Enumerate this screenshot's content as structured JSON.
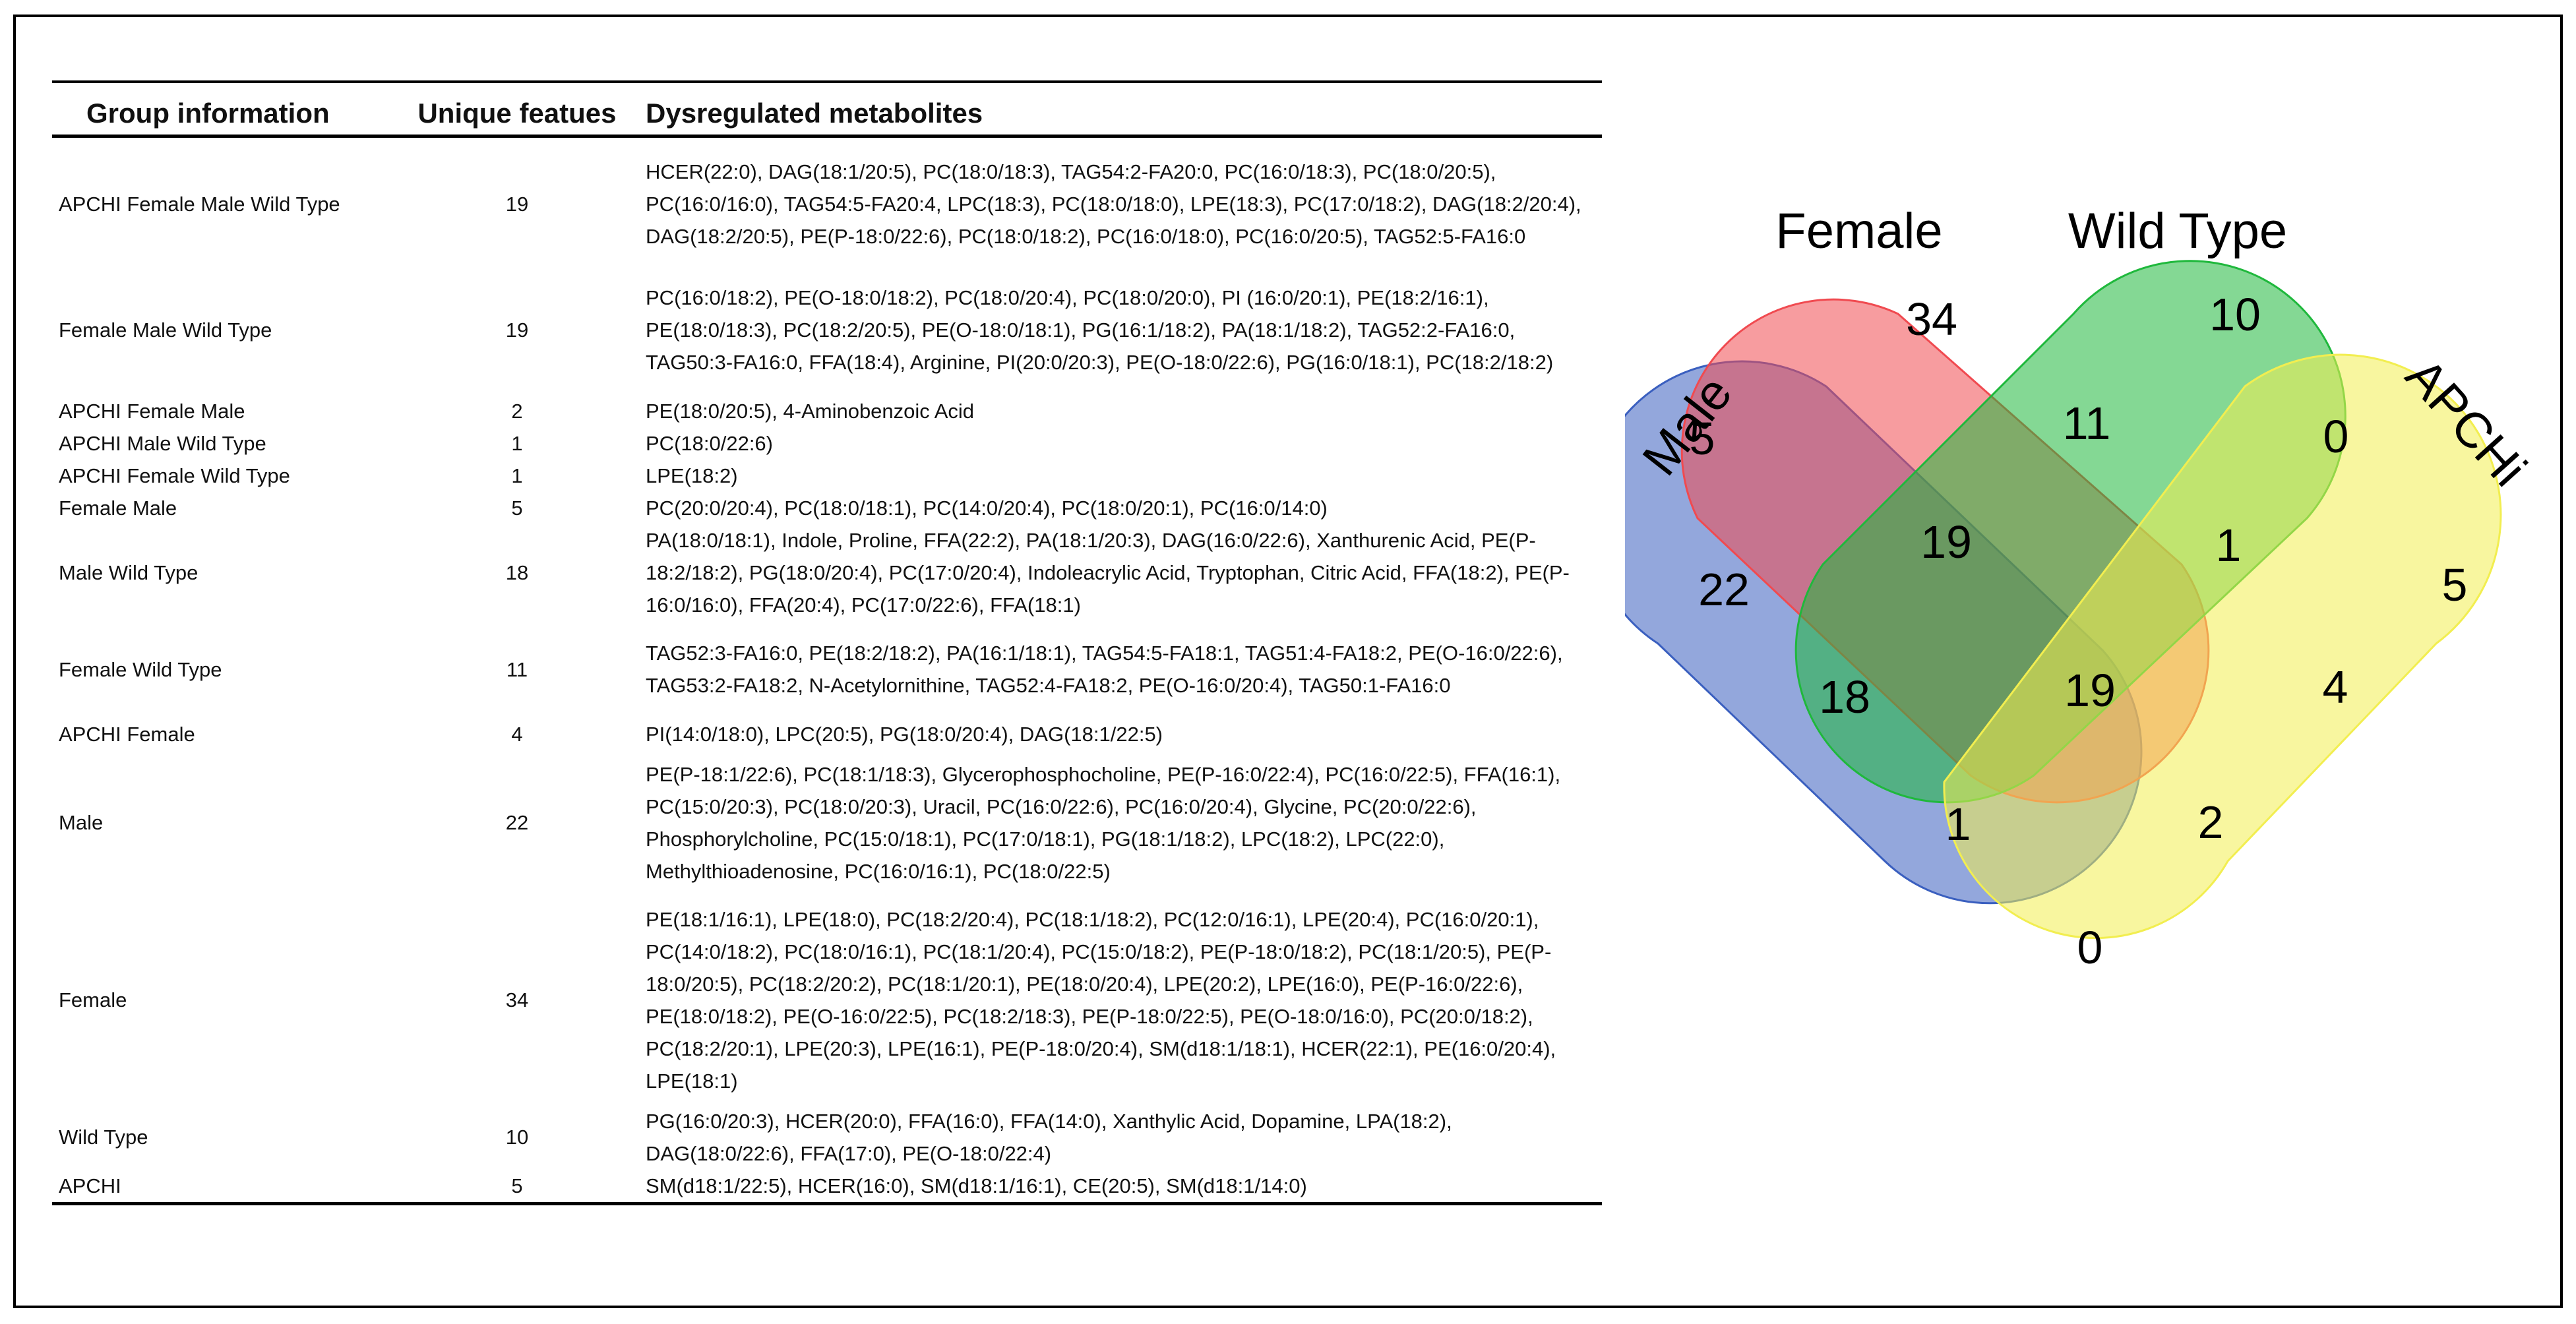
{
  "table": {
    "headers": [
      "Group information",
      "Unique featues",
      "Dysregulated metabolites"
    ],
    "rows": [
      {
        "group": "APCHI Female Male Wild Type",
        "count": "19",
        "metabolites": "HCER(22:0), DAG(18:1/20:5), PC(18:0/18:3), TAG54:2-FA20:0, PC(16:0/18:3), PC(18:0/20:5), PC(16:0/16:0), TAG54:5-FA20:4, LPC(18:3), PC(18:0/18:0), LPE(18:3), PC(17:0/18:2), DAG(18:2/20:4), DAG(18:2/20:5), PE(P-18:0/22:6), PC(18:0/18:2), PC(16:0/18:0), PC(16:0/20:5), TAG52:5-FA16:0"
      },
      {
        "group": "Female Male Wild Type",
        "count": "19",
        "metabolites": "PC(16:0/18:2), PE(O-18:0/18:2), PC(18:0/20:4), PC(18:0/20:0), PI (16:0/20:1), PE(18:2/16:1), PE(18:0/18:3), PC(18:2/20:5), PE(O-18:0/18:1), PG(16:1/18:2), PA(18:1/18:2), TAG52:2-FA16:0, TAG50:3-FA16:0, FFA(18:4), Arginine, PI(20:0/20:3), PE(O-18:0/22:6), PG(16:0/18:1),  PC(18:2/18:2)"
      },
      {
        "group": "APCHI Female Male",
        "count": "2",
        "metabolites": "PE(18:0/20:5), 4-Aminobenzoic Acid"
      },
      {
        "group": "APCHI Male Wild Type",
        "count": "1",
        "metabolites": "PC(18:0/22:6)"
      },
      {
        "group": "APCHI Female Wild Type",
        "count": "1",
        "metabolites": "LPE(18:2)"
      },
      {
        "group": "Female Male",
        "count": "5",
        "metabolites": "PC(20:0/20:4), PC(18:0/18:1), PC(14:0/20:4), PC(18:0/20:1), PC(16:0/14:0)"
      },
      {
        "group": "Male Wild Type",
        "count": "18",
        "metabolites": "PA(18:0/18:1), Indole, Proline, FFA(22:2), PA(18:1/20:3), DAG(16:0/22:6), Xanthurenic Acid, PE(P-18:2/18:2), PG(18:0/20:4), PC(17:0/20:4), Indoleacrylic Acid, Tryptophan, Citric Acid, FFA(18:2), PE(P-16:0/16:0), FFA(20:4), PC(17:0/22:6), FFA(18:1)"
      },
      {
        "group": "Female Wild Type",
        "count": "11",
        "metabolites": "TAG52:3-FA16:0, PE(18:2/18:2), PA(16:1/18:1), TAG54:5-FA18:1, TAG51:4-FA18:2, PE(O-16:0/22:6), TAG53:2-FA18:2, N-Acetylornithine, TAG52:4-FA18:2, PE(O-16:0/20:4), TAG50:1-FA16:0"
      },
      {
        "group": "APCHI Female",
        "count": "4",
        "metabolites": "PI(14:0/18:0), LPC(20:5), PG(18:0/20:4), DAG(18:1/22:5)"
      },
      {
        "group": "Male",
        "count": "22",
        "metabolites": "PE(P-18:1/22:6), PC(18:1/18:3), Glycerophosphocholine, PE(P-16:0/22:4), PC(16:0/22:5), FFA(16:1), PC(15:0/20:3), PC(18:0/20:3), Uracil, PC(16:0/22:6), PC(16:0/20:4), Glycine, PC(20:0/22:6), Phosphorylcholine, PC(15:0/18:1), PC(17:0/18:1), PG(18:1/18:2), LPC(18:2), LPC(22:0), Methylthioadenosine, PC(16:0/16:1), PC(18:0/22:5)"
      },
      {
        "group": "Female",
        "count": "34",
        "metabolites": "PE(18:1/16:1), LPE(18:0), PC(18:2/20:4), PC(18:1/18:2), PC(12:0/16:1), LPE(20:4), PC(16:0/20:1), PC(14:0/18:2), PC(18:0/16:1), PC(18:1/20:4), PC(15:0/18:2), PE(P-18:0/18:2), PC(18:1/20:5), PE(P-18:0/20:5), PC(18:2/20:2), PC(18:1/20:1), PE(18:0/20:4), LPE(20:2), LPE(16:0), PE(P-16:0/22:6), PE(18:0/18:2), PE(O-16:0/22:5), PC(18:2/18:3), PE(P-18:0/22:5), PE(O-18:0/16:0), PC(20:0/18:2), PC(18:2/20:1), LPE(20:3), LPE(16:1), PE(P-18:0/20:4), SM(d18:1/18:1), HCER(22:1), PE(16:0/20:4), LPE(18:1)"
      },
      {
        "group": "Wild Type",
        "count": "10",
        "metabolites": "PG(16:0/20:3), HCER(20:0), FFA(16:0), FFA(14:0), Xanthylic Acid, Dopamine, LPA(18:2), DAG(18:0/22:6), FFA(17:0), PE(O-18:0/22:4)"
      },
      {
        "group": "APCHI",
        "count": "5",
        "metabolites": "SM(d18:1/22:5), HCER(16:0), SM(d18:1/16:1), CE(20:5), SM(d18:1/14:0)"
      }
    ]
  },
  "venn": {
    "sets": [
      {
        "name": "Male",
        "color": "#3a5fbf"
      },
      {
        "name": "Female",
        "color": "#f04a50"
      },
      {
        "name": "Wild Type",
        "color": "#1fb83c"
      },
      {
        "name": "APCHi",
        "color": "#f2ee50"
      }
    ],
    "regions": {
      "male_only": "22",
      "female_only": "34",
      "wildtype_only": "10",
      "apchi_only": "5",
      "female_male": "5",
      "female_wildtype": "11",
      "wildtype_apchi": "0",
      "female_male_wildtype": "19",
      "female_wildtype_apchi": "1",
      "male_wildtype": "18",
      "all_four": "19",
      "female_apchi": "4",
      "male_wildtype_apchi": "1",
      "female_male_apchi": "2",
      "male_apchi": "0"
    }
  }
}
